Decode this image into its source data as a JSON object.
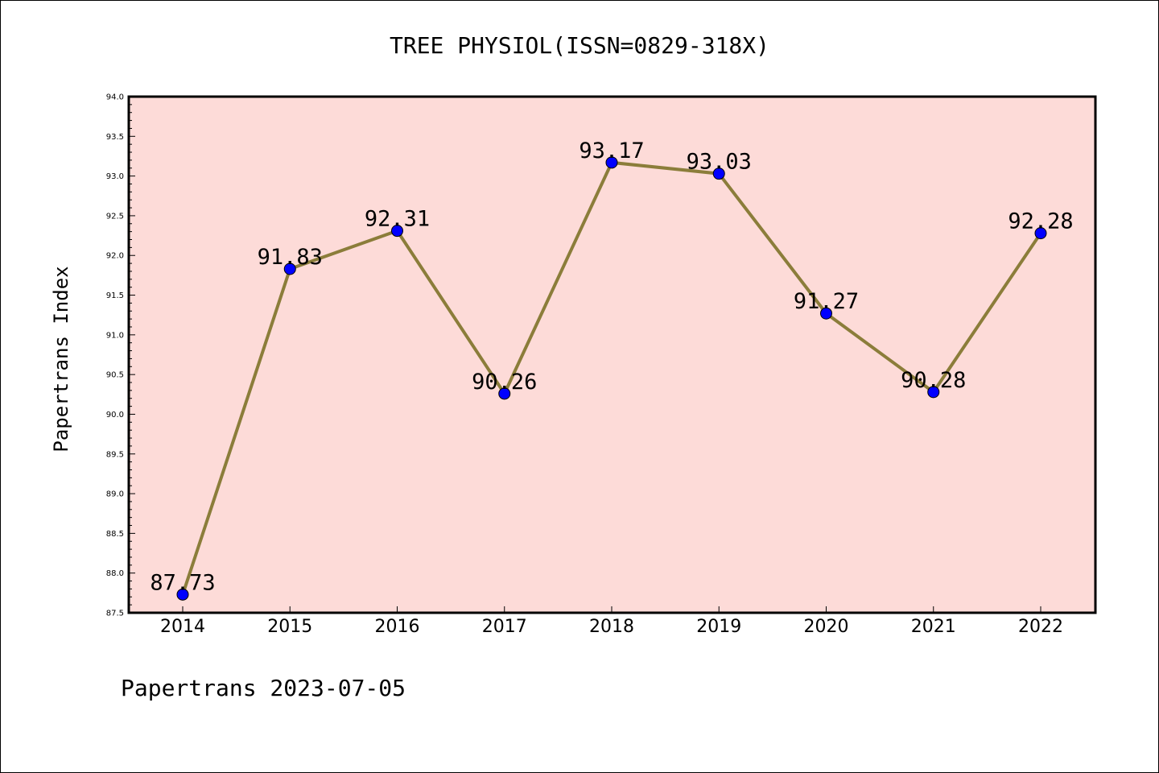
{
  "chart_data": {
    "type": "line",
    "title": "TREE PHYSIOL(ISSN=0829-318X)",
    "xlabel": "",
    "ylabel": "Papertrans Index",
    "categories": [
      "2014",
      "2015",
      "2016",
      "2017",
      "2018",
      "2019",
      "2020",
      "2021",
      "2022"
    ],
    "values": [
      87.73,
      91.83,
      92.31,
      90.26,
      93.17,
      93.03,
      91.27,
      90.28,
      92.28
    ],
    "data_labels": [
      "87.73",
      "91.83",
      "92.31",
      "90.26",
      "93.17",
      "93.03",
      "91.27",
      "90.28",
      "92.28"
    ],
    "ylim": [
      87.5,
      94.0
    ],
    "yticks": [
      "87.5",
      "88.0",
      "88.5",
      "89.0",
      "89.5",
      "90.0",
      "90.5",
      "91.0",
      "91.5",
      "92.0",
      "92.5",
      "93.0",
      "93.5",
      "94.0"
    ],
    "grid": false,
    "legend": "none",
    "colors": {
      "plot_background": "#fddbd8",
      "line": "#8b7d3a",
      "marker": "#0000ff",
      "axis": "#000000"
    }
  },
  "footer": "Papertrans 2023-07-05"
}
